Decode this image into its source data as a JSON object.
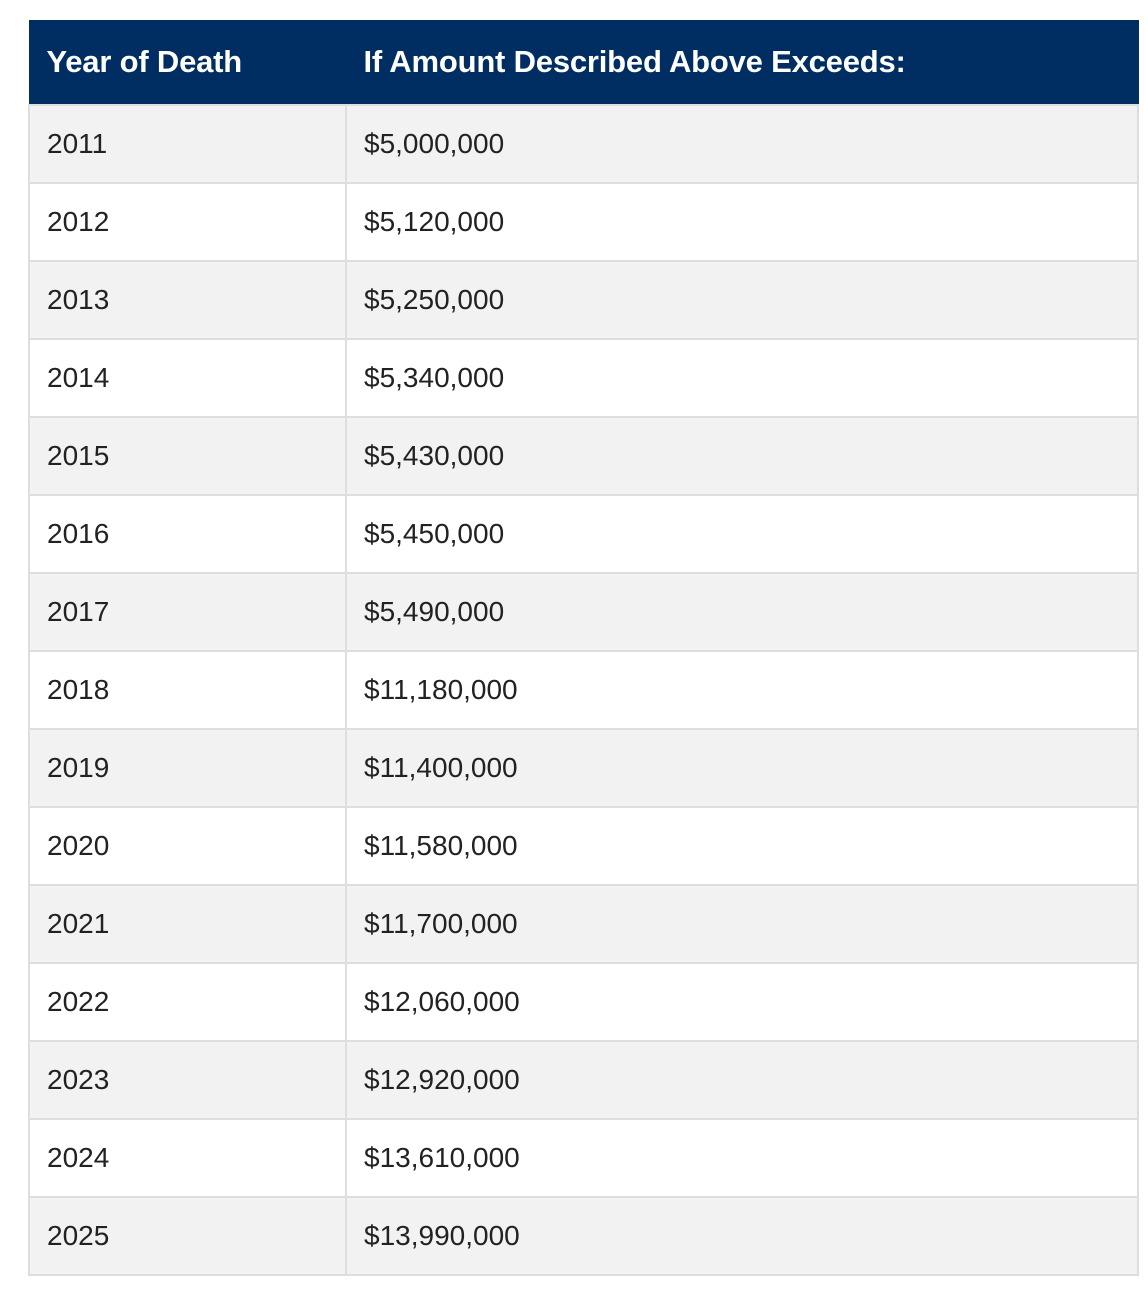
{
  "table": {
    "headers": [
      "Year of Death",
      "If Amount Described Above Exceeds:"
    ],
    "rows": [
      [
        "2011",
        "$5,000,000"
      ],
      [
        "2012",
        "$5,120,000"
      ],
      [
        "2013",
        "$5,250,000"
      ],
      [
        "2014",
        "$5,340,000"
      ],
      [
        "2015",
        "$5,430,000"
      ],
      [
        "2016",
        "$5,450,000"
      ],
      [
        "2017",
        "$5,490,000"
      ],
      [
        "2018",
        "$11,180,000"
      ],
      [
        "2019",
        "$11,400,000"
      ],
      [
        "2020",
        "$11,580,000"
      ],
      [
        "2021",
        "$11,700,000"
      ],
      [
        "2022",
        "$12,060,000"
      ],
      [
        "2023",
        "$12,920,000"
      ],
      [
        "2024",
        "$13,610,000"
      ],
      [
        "2025",
        "$13,990,000"
      ]
    ]
  },
  "colors": {
    "header_background": "#002d62",
    "header_text": "#ffffff",
    "row_stripe": "#f2f2f2",
    "border": "#dedede"
  }
}
